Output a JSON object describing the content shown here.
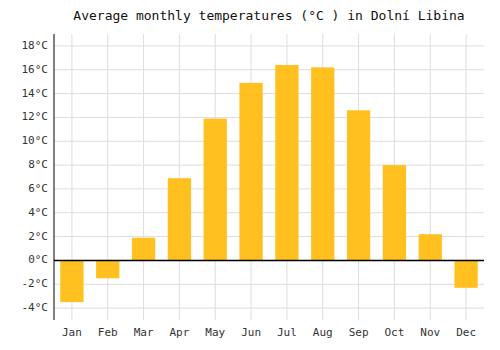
{
  "chart_data": {
    "type": "bar",
    "title": "Average monthly temperatures (°C ) in Dolní Libina",
    "categories": [
      "Jan",
      "Feb",
      "Mar",
      "Apr",
      "May",
      "Jun",
      "Jul",
      "Aug",
      "Sep",
      "Oct",
      "Nov",
      "Dec"
    ],
    "values": [
      -3.5,
      -1.5,
      1.9,
      6.9,
      11.9,
      14.9,
      16.4,
      16.2,
      12.6,
      8.0,
      2.2,
      -2.3
    ],
    "color": "#FFC020",
    "ylim": [
      -5,
      19
    ],
    "yticks": [
      {
        "value": -4,
        "label": "-4°C"
      },
      {
        "value": -2,
        "label": "-2°C"
      },
      {
        "value": 0,
        "label": "0°C"
      },
      {
        "value": 2,
        "label": "2°C"
      },
      {
        "value": 4,
        "label": "4°C"
      },
      {
        "value": 6,
        "label": "6°C"
      },
      {
        "value": 8,
        "label": "8°C"
      },
      {
        "value": 10,
        "label": "10°C"
      },
      {
        "value": 12,
        "label": "12°C"
      },
      {
        "value": 14,
        "label": "14°C"
      },
      {
        "value": 16,
        "label": "16°C"
      },
      {
        "value": 18,
        "label": "18°C"
      }
    ],
    "grid": true
  }
}
